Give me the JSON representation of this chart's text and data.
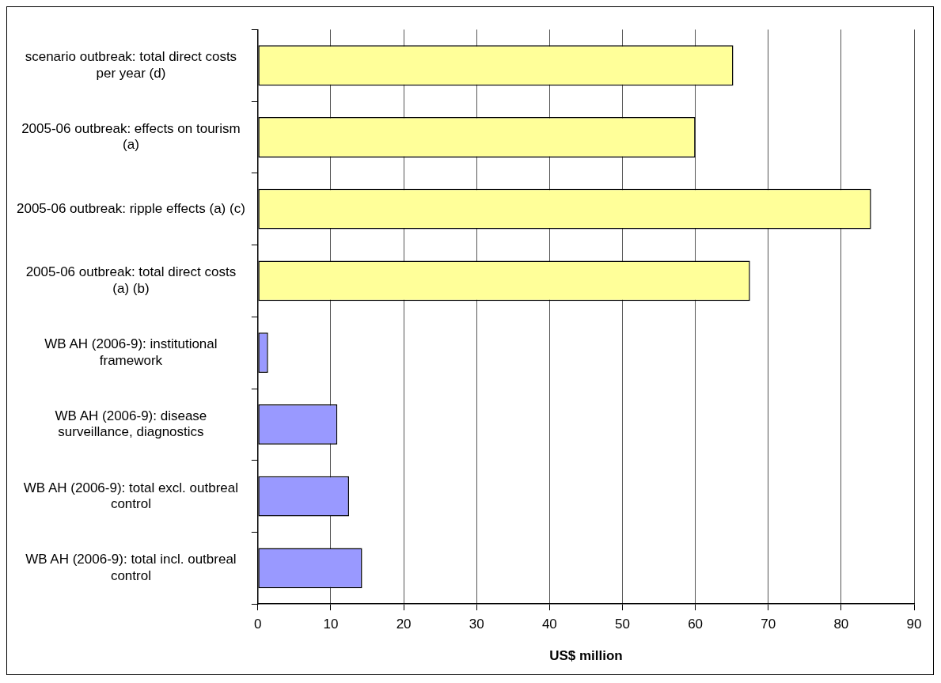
{
  "chart_data": {
    "type": "bar",
    "orientation": "horizontal",
    "xlabel": "US$ million",
    "categories": [
      "scenario outbreak: total direct costs per year (d)",
      "2005-06 outbreak: effects on tourism (a)",
      "2005-06 outbreak: ripple effects (a) (c)",
      "2005-06 outbreak: total direct costs (a) (b)",
      "WB AH (2006-9): institutional framework",
      "WB AH (2006-9): disease surveillance, diagnostics",
      "WB AH (2006-9): total excl. outbreal control",
      "WB AH (2006-9): total incl. outbreal control"
    ],
    "values": [
      65.2,
      60,
      84.1,
      67.5,
      1.4,
      10.9,
      12.5,
      14.3
    ],
    "colors": [
      "#ffff99",
      "#ffff99",
      "#ffff99",
      "#ffff99",
      "#9999ff",
      "#9999ff",
      "#9999ff",
      "#9999ff"
    ],
    "xlim": [
      0,
      90
    ],
    "xticks": [
      0,
      10,
      20,
      30,
      40,
      50,
      60,
      70,
      80,
      90
    ],
    "grid": "x",
    "legend": false
  }
}
